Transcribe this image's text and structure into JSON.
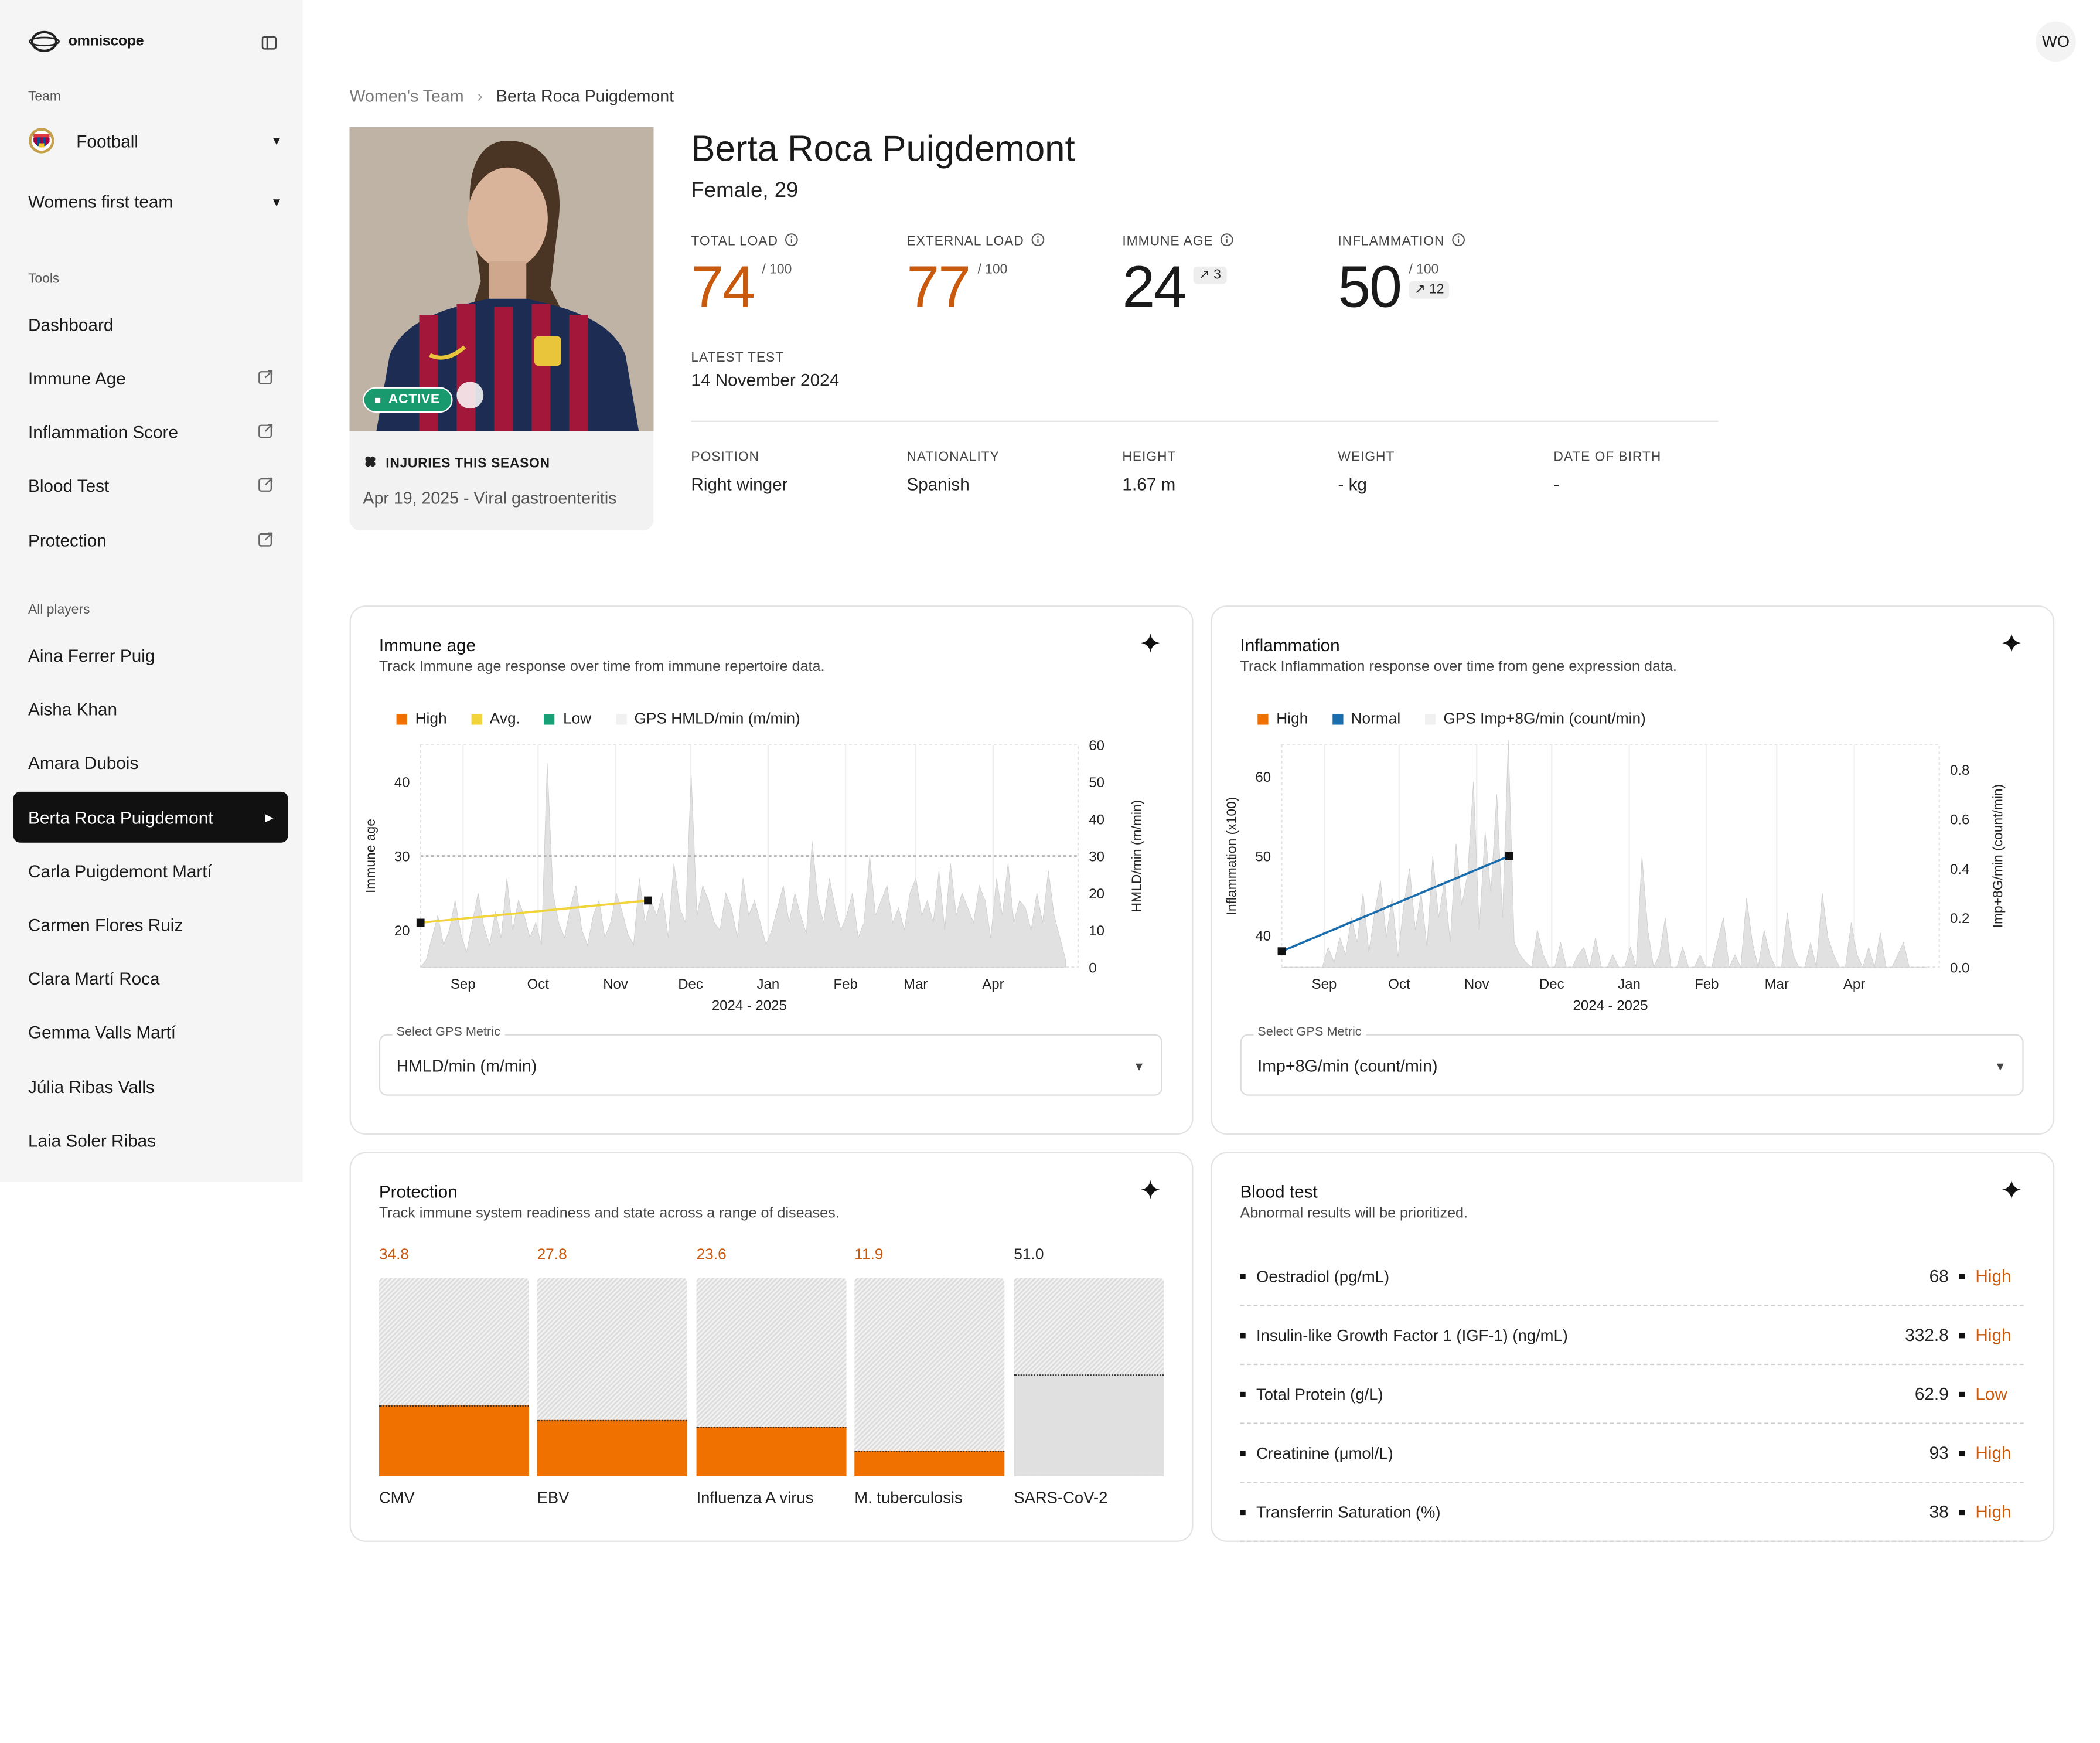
{
  "app": {
    "name": "omniscope",
    "user_initials": "WO"
  },
  "sidebar": {
    "team_label": "Team",
    "team": "Football",
    "squad": "Womens first team",
    "tools_label": "Tools",
    "tools": [
      "Dashboard",
      "Immune Age",
      "Inflammation Score",
      "Blood Test",
      "Protection"
    ],
    "players_label": "All players",
    "players": [
      "Aina Ferrer Puig",
      "Aisha Khan",
      "Amara Dubois",
      "Berta Roca Puigdemont",
      "Carla Puigdemont Martí",
      "Carmen Flores Ruiz",
      "Clara Martí Roca",
      "Gemma Valls Martí",
      "Júlia Ribas Valls",
      "Laia Soler Ribas"
    ]
  },
  "breadcrumb": {
    "parent": "Women's Team",
    "current": "Berta Roca Puigdemont"
  },
  "profile": {
    "name": "Berta Roca Puigdemont",
    "subtitle": "Female, 29",
    "status": "ACTIVE",
    "injuries_title": "INJURIES THIS SEASON",
    "injury": "Apr 19, 2025 - Viral gastroenteritis",
    "kpis": [
      {
        "label": "TOTAL LOAD",
        "value": "74",
        "max": "/ 100",
        "delta": ""
      },
      {
        "label": "EXTERNAL LOAD",
        "value": "77",
        "max": "/ 100",
        "delta": ""
      },
      {
        "label": "IMMUNE AGE",
        "value": "24",
        "max": "",
        "delta": "↗ 3"
      },
      {
        "label": "INFLAMMATION",
        "value": "50",
        "max": "/ 100",
        "delta": "↗ 12"
      }
    ],
    "latest_test_label": "LATEST TEST",
    "latest_test": "14 November 2024",
    "attributes": [
      {
        "label": "POSITION",
        "value": "Right winger"
      },
      {
        "label": "NATIONALITY",
        "value": "Spanish"
      },
      {
        "label": "HEIGHT",
        "value": "1.67 m"
      },
      {
        "label": "WEIGHT",
        "value": "- kg"
      },
      {
        "label": "DATE OF BIRTH",
        "value": "-"
      }
    ]
  },
  "immune_card": {
    "title": "Immune age",
    "desc": "Track Immune age response over time from immune repertoire data.",
    "legend": [
      "High",
      "Avg.",
      "Low",
      "GPS HMLD/min (m/min)"
    ],
    "select_label": "Select GPS Metric",
    "select_value": "HMLD/min (m/min)"
  },
  "inflammation_card": {
    "title": "Inflammation",
    "desc": "Track Inflammation response over time from gene expression data.",
    "legend": [
      "High",
      "Normal",
      "GPS Imp+8G/min (count/min)"
    ],
    "select_label": "Select GPS Metric",
    "select_value": "Imp+8G/min (count/min)"
  },
  "protection_card": {
    "title": "Protection",
    "desc": "Track immune system readiness and state across a range of diseases.",
    "items": [
      {
        "name": "CMV",
        "value": "34.8",
        "fill": 0.35,
        "color": "#f07000",
        "text_color": "#c95a0d"
      },
      {
        "name": "EBV",
        "value": "27.8",
        "fill": 0.28,
        "color": "#f07000",
        "text_color": "#c95a0d"
      },
      {
        "name": "Influenza A virus",
        "value": "23.6",
        "fill": 0.24,
        "color": "#f07000",
        "text_color": "#c95a0d"
      },
      {
        "name": "M. tuberculosis",
        "value": "11.9",
        "fill": 0.12,
        "color": "#f07000",
        "text_color": "#c95a0d"
      },
      {
        "name": "SARS-CoV-2",
        "value": "51.0",
        "fill": 0.51,
        "color": "#e0e0e0",
        "text_color": "#222222"
      }
    ]
  },
  "blood_card": {
    "title": "Blood test",
    "desc": "Abnormal results will be prioritized.",
    "rows": [
      {
        "name": "Oestradiol (pg/mL)",
        "value": "68",
        "status": "High"
      },
      {
        "name": "Insulin-like Growth Factor 1 (IGF-1) (ng/mL)",
        "value": "332.8",
        "status": "High"
      },
      {
        "name": "Total Protein (g/L)",
        "value": "62.9",
        "status": "Low"
      },
      {
        "name": "Creatinine (μmol/L)",
        "value": "93",
        "status": "High"
      },
      {
        "name": "Transferrin Saturation (%)",
        "value": "38",
        "status": "High"
      }
    ]
  },
  "colors": {
    "orange": "#f07000",
    "orange_text": "#c95a0d",
    "yellow": "#f0d43a",
    "green": "#17a075",
    "blue": "#1a6eae",
    "active": "#189a6e"
  },
  "chart_data": [
    {
      "type": "line",
      "title": "",
      "xlabel": "2024 - 2025",
      "ylabel": "Immune age",
      "y2label": "HMLD/min (m/min)",
      "x_ticks": [
        "Sep",
        "Oct",
        "Nov",
        "Dec",
        "Jan",
        "Feb",
        "Mar",
        "Apr"
      ],
      "ylim": [
        15,
        45
      ],
      "y_ticks": [
        20,
        30,
        40
      ],
      "y2lim": [
        0,
        60
      ],
      "y2_ticks": [
        0,
        10,
        20,
        30,
        40,
        50,
        60
      ],
      "series": [
        {
          "name": "Immune age",
          "x": [
            "2024-08-15",
            "2024-11-14"
          ],
          "values": [
            21,
            24
          ]
        }
      ],
      "gps_series": {
        "name": "GPS HMLD/min (m/min)",
        "x_range": [
          "2024-08-15",
          "2025-04-30"
        ],
        "values": [
          0,
          2,
          8,
          14,
          6,
          10,
          18,
          9,
          4,
          12,
          20,
          11,
          6,
          15,
          8,
          24,
          10,
          18,
          14,
          8,
          12,
          6,
          55,
          20,
          12,
          8,
          16,
          22,
          10,
          6,
          14,
          18,
          8,
          12,
          20,
          15,
          9,
          6,
          24,
          12,
          18,
          14,
          20,
          8,
          28,
          16,
          12,
          52,
          14,
          22,
          18,
          12,
          10,
          20,
          16,
          8,
          24,
          14,
          18,
          12,
          6,
          10,
          16,
          22,
          12,
          20,
          14,
          9,
          34,
          18,
          12,
          24,
          16,
          10,
          14,
          20,
          8,
          12,
          30,
          14,
          18,
          22,
          12,
          16,
          10,
          20,
          24,
          14,
          18,
          12,
          26,
          10,
          28,
          14,
          20,
          16,
          12,
          22,
          18,
          8,
          24,
          14,
          28,
          12,
          18,
          16,
          10,
          20,
          12,
          26,
          14,
          8,
          2
        ]
      }
    },
    {
      "type": "line",
      "title": "",
      "xlabel": "2024 - 2025",
      "ylabel": "Inflammation (x100)",
      "y2label": "Imp+8G/min (count/min)",
      "x_ticks": [
        "Sep",
        "Oct",
        "Nov",
        "Dec",
        "Jan",
        "Feb",
        "Mar",
        "Apr"
      ],
      "ylim": [
        36,
        64
      ],
      "y_ticks": [
        40,
        50,
        60
      ],
      "y2lim": [
        0,
        0.9
      ],
      "y2_ticks": [
        0.0,
        0.2,
        0.4,
        0.6,
        0.8
      ],
      "series": [
        {
          "name": "Inflammation",
          "x": [
            "2024-08-15",
            "2024-11-14"
          ],
          "values": [
            38,
            50
          ]
        }
      ],
      "gps_series": {
        "name": "GPS Imp+8G/min (count/min)",
        "x_range": [
          "2024-08-15",
          "2025-04-30"
        ],
        "values": [
          0,
          0,
          0,
          0,
          0,
          0,
          0,
          0,
          0.08,
          0.02,
          0.12,
          0.05,
          0.2,
          0.1,
          0.3,
          0.06,
          0.22,
          0.35,
          0.12,
          0.28,
          0.04,
          0.25,
          0.4,
          0.15,
          0.3,
          0.08,
          0.45,
          0.2,
          0.35,
          0.1,
          0.5,
          0.25,
          0.38,
          0.75,
          0.15,
          0.55,
          0.3,
          0.7,
          0.2,
          0.92,
          0.1,
          0.05,
          0.02,
          0.0,
          0.15,
          0.05,
          0.0,
          0.0,
          0.1,
          0.0,
          0.0,
          0.05,
          0.08,
          0.0,
          0.12,
          0.0,
          0.0,
          0.05,
          0.0,
          0.0,
          0.08,
          0.0,
          0.45,
          0.15,
          0.0,
          0.05,
          0.2,
          0.0,
          0.0,
          0.08,
          0.0,
          0.0,
          0.05,
          0.0,
          0.0,
          0.1,
          0.2,
          0.0,
          0.05,
          0.0,
          0.28,
          0.1,
          0.0,
          0.15,
          0.05,
          0.0,
          0.0,
          0.22,
          0.05,
          0.0,
          0.0,
          0.1,
          0.0,
          0.3,
          0.12,
          0.05,
          0.0,
          0.0,
          0.18,
          0.05,
          0.0,
          0.08,
          0.0,
          0.14,
          0.0,
          0.0,
          0.05,
          0.1,
          0.0,
          0.0,
          0.0,
          0.0
        ]
      }
    },
    {
      "type": "bar",
      "title": "",
      "categories": [
        "CMV",
        "EBV",
        "Influenza A virus",
        "M. tuberculosis",
        "SARS-CoV-2"
      ],
      "values": [
        34.8,
        27.8,
        23.6,
        11.9,
        51.0
      ],
      "ylim": [
        0,
        100
      ]
    }
  ]
}
